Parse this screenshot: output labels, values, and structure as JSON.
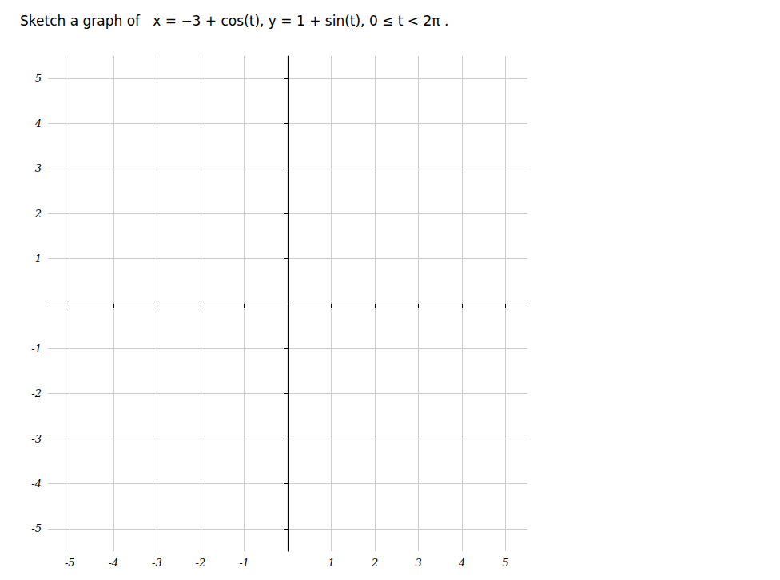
{
  "chart_data": {
    "type": "scatter",
    "title": "Sketch a graph of   x = −3 + cos(t), y = 1 + sin(t), 0 ≤ t < 2π .",
    "xlim": [
      -5.5,
      5.5
    ],
    "ylim": [
      -5.5,
      5.5
    ],
    "xticks": [
      -5,
      -4,
      -3,
      -2,
      -1,
      1,
      2,
      3,
      4,
      5
    ],
    "yticks": [
      -5,
      -4,
      -3,
      -2,
      -1,
      1,
      2,
      3,
      4,
      5
    ],
    "grid": true
  }
}
